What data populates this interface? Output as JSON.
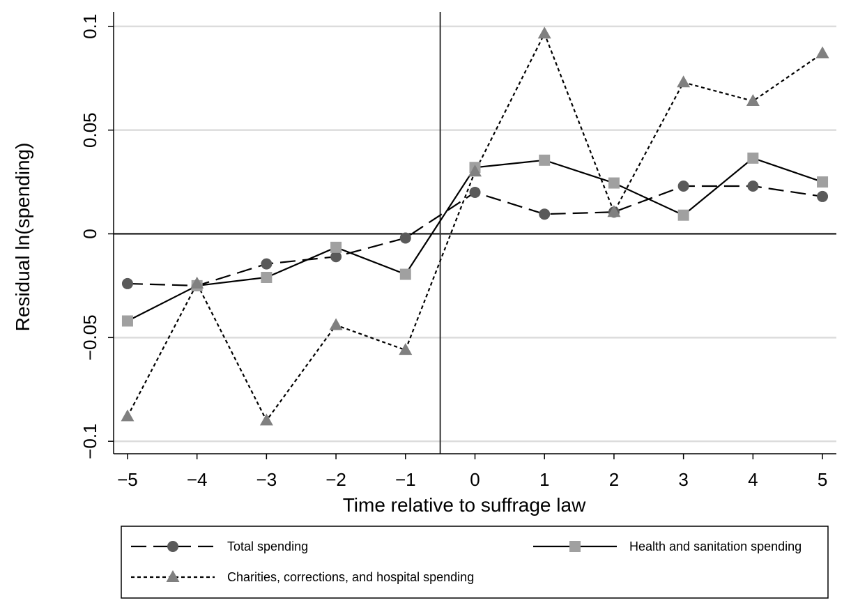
{
  "chart_data": {
    "type": "line",
    "xlabel": "Time relative to suffrage law",
    "ylabel": "Residual ln(spending)",
    "x": [
      -5,
      -4,
      -3,
      -2,
      -1,
      0,
      1,
      2,
      3,
      4,
      5
    ],
    "xticks": [
      -5,
      -4,
      -3,
      -2,
      -1,
      0,
      1,
      2,
      3,
      4,
      5
    ],
    "xtick_labels": [
      "−5",
      "−4",
      "−3",
      "−2",
      "−1",
      "0",
      "1",
      "2",
      "3",
      "4",
      "5"
    ],
    "xlim": [
      -5.2,
      5.2
    ],
    "yticks": [
      -0.1,
      -0.05,
      0,
      0.05,
      0.1
    ],
    "ytick_labels": [
      "−0.1",
      "−0.05",
      "0",
      "0.05",
      "0.1"
    ],
    "ylim": [
      -0.106,
      0.107
    ],
    "grid": true,
    "reference_lines": {
      "horizontal_y": 0,
      "vertical_x": -0.5
    },
    "legend_placement": "bottom",
    "series": [
      {
        "name": "Total spending",
        "marker": "circle",
        "line_style": "dashed",
        "color": "#5a5a5a",
        "values": [
          -0.024,
          -0.025,
          -0.0145,
          -0.011,
          -0.002,
          0.02,
          0.0095,
          0.0105,
          0.023,
          0.023,
          0.018
        ]
      },
      {
        "name": "Health and sanitation spending",
        "marker": "square",
        "line_style": "solid",
        "color": "#a0a0a0",
        "values": [
          -0.042,
          -0.025,
          -0.021,
          -0.0065,
          -0.0195,
          0.032,
          0.0355,
          0.0245,
          0.009,
          0.0365,
          0.025
        ]
      },
      {
        "name": "Charities, corrections, and hospital spending",
        "marker": "triangle",
        "line_style": "dotted",
        "color": "#808080",
        "values": [
          -0.088,
          -0.024,
          -0.09,
          -0.044,
          -0.056,
          0.03,
          0.0965,
          0.0105,
          0.073,
          0.064,
          0.087
        ]
      }
    ]
  }
}
